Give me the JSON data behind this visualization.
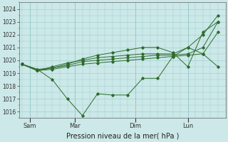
{
  "xlabel": "Pression niveau de la mer( hPa )",
  "ylim": [
    1015.5,
    1024.5
  ],
  "yticks": [
    1016,
    1017,
    1018,
    1019,
    1020,
    1021,
    1022,
    1023,
    1024
  ],
  "background_color": "#cce8e8",
  "grid_color": "#99cccc",
  "line_color": "#2d6b2d",
  "x_tick_labels": [
    "Sam",
    "Mar",
    "Dim",
    "Lun"
  ],
  "x_tick_positions": [
    0.5,
    3.5,
    7.5,
    11.0
  ],
  "xlim": [
    -0.2,
    13.5
  ],
  "n_points": 14,
  "series": [
    [
      1019.7,
      1019.3,
      1018.5,
      1017.0,
      1015.7,
      1017.4,
      1017.3,
      1017.3,
      1018.6,
      1018.6,
      1020.3,
      1021.0,
      1020.5,
      1019.5
    ],
    [
      1019.7,
      1019.2,
      1019.3,
      1019.5,
      1019.7,
      1019.8,
      1019.9,
      1020.0,
      1020.1,
      1020.2,
      1020.3,
      1020.4,
      1020.5,
      1022.2
    ],
    [
      1019.7,
      1019.2,
      1019.4,
      1019.6,
      1019.9,
      1020.0,
      1020.1,
      1020.2,
      1020.3,
      1020.4,
      1020.4,
      1020.5,
      1021.0,
      1023.0
    ],
    [
      1019.7,
      1019.2,
      1019.5,
      1019.8,
      1020.0,
      1020.2,
      1020.3,
      1020.4,
      1020.5,
      1020.5,
      1020.5,
      1021.0,
      1022.0,
      1023.5
    ],
    [
      1019.7,
      1019.3,
      1019.4,
      1019.7,
      1020.1,
      1020.4,
      1020.6,
      1020.8,
      1021.0,
      1021.0,
      1020.6,
      1019.5,
      1022.2,
      1023.0
    ]
  ]
}
